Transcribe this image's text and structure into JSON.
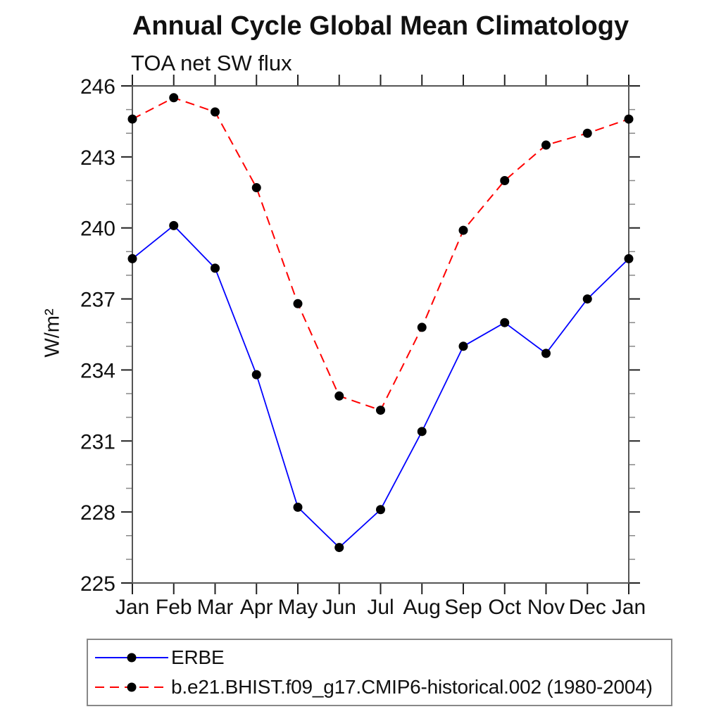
{
  "chart_data": {
    "type": "line",
    "title": "Annual Cycle Global Mean Climatology",
    "subtitle": "TOA net SW flux",
    "xlabel": "",
    "ylabel": "W/m²",
    "ylim": [
      225,
      246
    ],
    "ytick_interval_major": 3,
    "ytick_interval_minor": 1,
    "ytick_labels": [
      "225",
      "228",
      "231",
      "234",
      "237",
      "240",
      "243",
      "246"
    ],
    "categories": [
      "Jan",
      "Feb",
      "Mar",
      "Apr",
      "May",
      "Jun",
      "Jul",
      "Aug",
      "Sep",
      "Oct",
      "Nov",
      "Dec",
      "Jan"
    ],
    "grid": false,
    "legend_position": "bottom-left boxed",
    "axis_color": "#555555",
    "tick_color": "#222222",
    "minor_tick_color": "#888888",
    "series": [
      {
        "name": "ERBE",
        "line_style": "solid",
        "color": "#0000ff",
        "marker": "filled-circle",
        "marker_color": "#000000",
        "values": [
          238.7,
          240.1,
          238.3,
          233.8,
          228.2,
          226.5,
          228.1,
          231.4,
          235.0,
          236.0,
          234.7,
          237.0,
          238.7
        ]
      },
      {
        "name": "b.e21.BHIST.f09_g17.CMIP6-historical.002 (1980-2004)",
        "line_style": "dashed",
        "color": "#ff0000",
        "marker": "filled-circle",
        "marker_color": "#000000",
        "values": [
          244.6,
          245.5,
          244.9,
          241.7,
          236.8,
          232.9,
          232.3,
          235.8,
          239.9,
          242.0,
          243.5,
          244.0,
          244.6
        ]
      }
    ]
  }
}
